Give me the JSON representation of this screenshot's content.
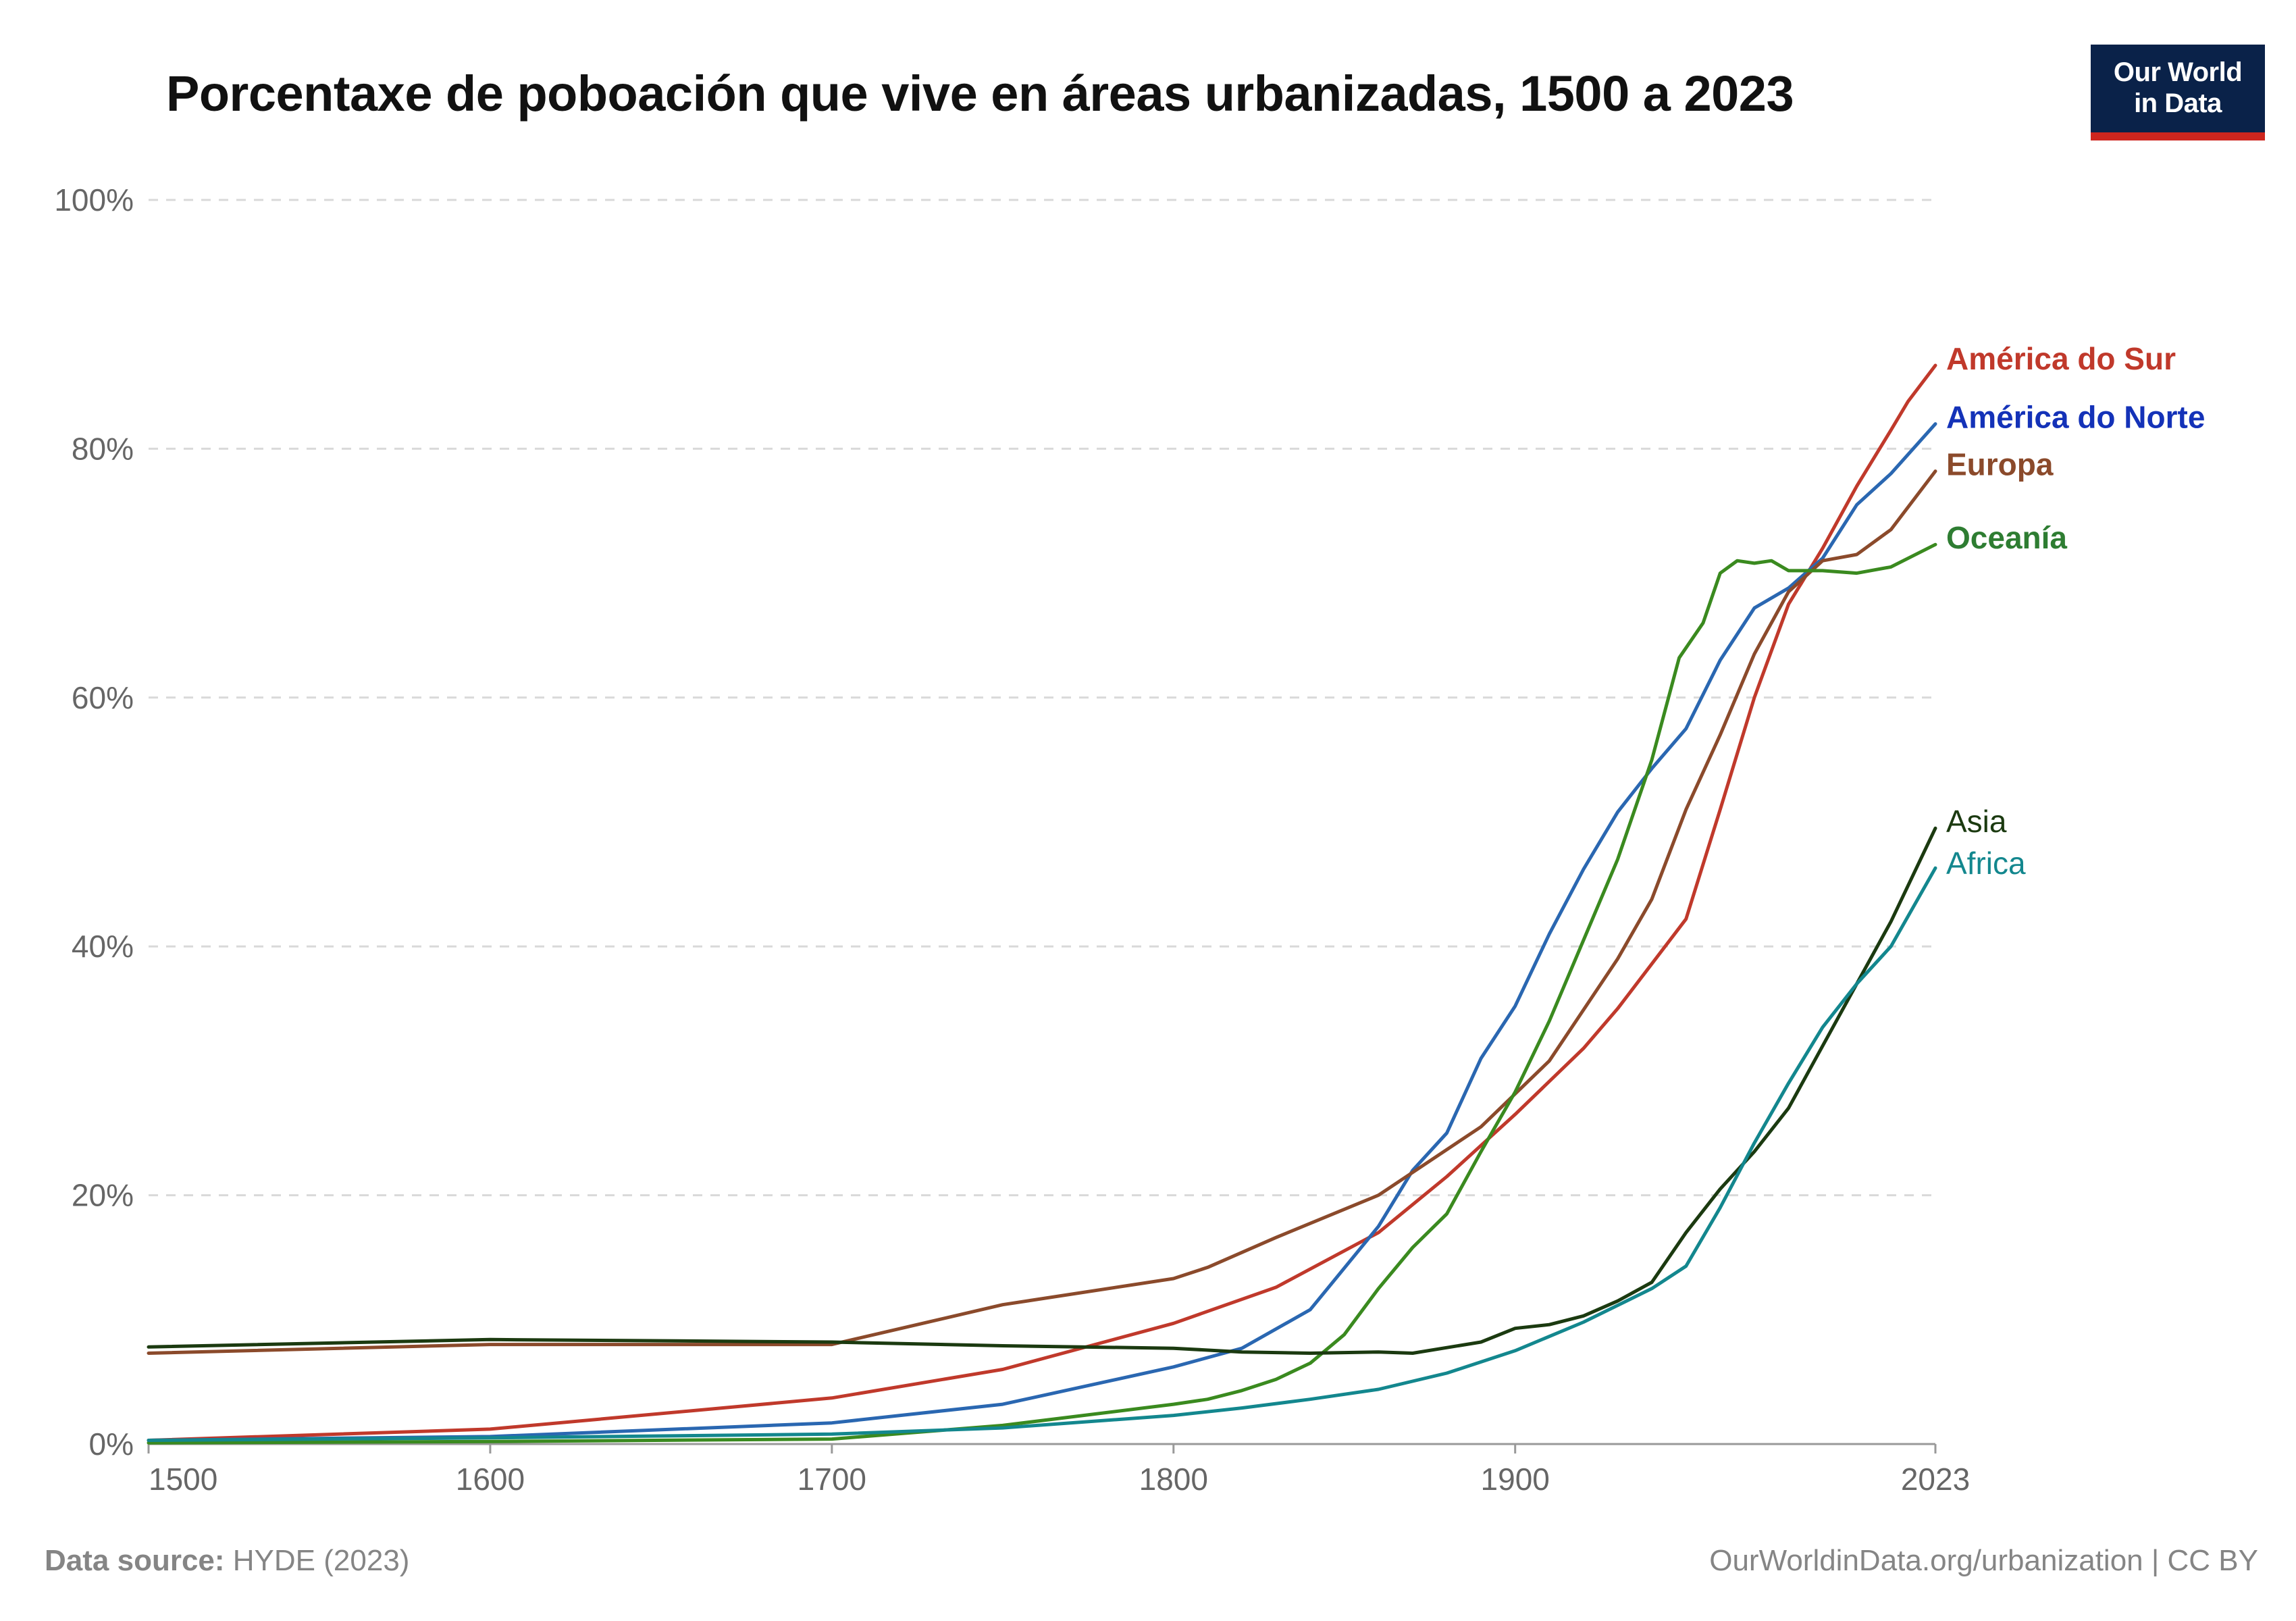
{
  "title": "Porcentaxe de poboación que vive en áreas urbanizadas, 1500 a 2023",
  "logo": {
    "line1": "Our World",
    "line2": "in Data",
    "bg": "#0a2249",
    "accent": "#ce261e"
  },
  "footer": {
    "source_label": "Data source:",
    "source_value": "HYDE (2023)",
    "url": "OurWorldinData.org/urbanization | CC BY"
  },
  "chart_data": {
    "type": "line",
    "title": "Porcentaxe de poboación que vive en áreas urbanizadas, 1500 a 2023",
    "xlabel": "",
    "ylabel": "",
    "xlim": [
      1500,
      2023
    ],
    "ylim": [
      0,
      100
    ],
    "x_ticks": [
      1500,
      1600,
      1700,
      1800,
      1900,
      2023
    ],
    "x_tick_labels": [
      "1500",
      "1600",
      "1700",
      "1800",
      "1900",
      "2023"
    ],
    "y_ticks": [
      0,
      20,
      40,
      60,
      80,
      100
    ],
    "y_tick_labels": [
      "0%",
      "20%",
      "40%",
      "60%",
      "80%",
      "100%"
    ],
    "grid": "horizontal dashed",
    "legend": "line-end labels on the right",
    "series": [
      {
        "name": "América do Sur",
        "color": "#c0392b",
        "label_color": "#c0392b",
        "points": [
          [
            1500,
            0.3
          ],
          [
            1600,
            1.2
          ],
          [
            1700,
            3.7
          ],
          [
            1750,
            6.0
          ],
          [
            1800,
            9.7
          ],
          [
            1830,
            12.6
          ],
          [
            1860,
            17.0
          ],
          [
            1880,
            21.5
          ],
          [
            1900,
            26.5
          ],
          [
            1920,
            31.8
          ],
          [
            1930,
            35.0
          ],
          [
            1950,
            42.2
          ],
          [
            1960,
            51.0
          ],
          [
            1970,
            60.0
          ],
          [
            1980,
            67.5
          ],
          [
            1990,
            72.0
          ],
          [
            2000,
            77.0
          ],
          [
            2010,
            81.5
          ],
          [
            2015,
            83.8
          ],
          [
            2023,
            86.7
          ]
        ]
      },
      {
        "name": "América do Norte",
        "color": "#2a67b1",
        "label_color": "#1432b8",
        "points": [
          [
            1500,
            0.3
          ],
          [
            1600,
            0.6
          ],
          [
            1700,
            1.7
          ],
          [
            1750,
            3.2
          ],
          [
            1800,
            6.2
          ],
          [
            1820,
            7.7
          ],
          [
            1840,
            10.8
          ],
          [
            1860,
            17.5
          ],
          [
            1870,
            22.0
          ],
          [
            1880,
            25.0
          ],
          [
            1890,
            31.0
          ],
          [
            1900,
            35.2
          ],
          [
            1910,
            41.0
          ],
          [
            1920,
            46.2
          ],
          [
            1930,
            50.8
          ],
          [
            1940,
            54.3
          ],
          [
            1950,
            57.5
          ],
          [
            1960,
            63.0
          ],
          [
            1970,
            67.2
          ],
          [
            1980,
            68.8
          ],
          [
            1990,
            71.2
          ],
          [
            2000,
            75.5
          ],
          [
            2010,
            78.0
          ],
          [
            2023,
            82.0
          ]
        ]
      },
      {
        "name": "Europa",
        "color": "#8b4a2b",
        "label_color": "#8b4a2b",
        "points": [
          [
            1500,
            7.3
          ],
          [
            1600,
            8.0
          ],
          [
            1700,
            8.0
          ],
          [
            1750,
            11.2
          ],
          [
            1800,
            13.3
          ],
          [
            1810,
            14.2
          ],
          [
            1830,
            16.6
          ],
          [
            1860,
            20.0
          ],
          [
            1890,
            25.5
          ],
          [
            1910,
            30.8
          ],
          [
            1930,
            39.0
          ],
          [
            1940,
            43.8
          ],
          [
            1950,
            51.0
          ],
          [
            1960,
            57.0
          ],
          [
            1970,
            63.5
          ],
          [
            1980,
            68.5
          ],
          [
            1990,
            71.0
          ],
          [
            2000,
            71.5
          ],
          [
            2010,
            73.5
          ],
          [
            2023,
            78.2
          ]
        ]
      },
      {
        "name": "Oceanía",
        "color": "#3a8a1f",
        "label_color": "#2e7d32",
        "points": [
          [
            1500,
            0.1
          ],
          [
            1600,
            0.2
          ],
          [
            1700,
            0.4
          ],
          [
            1750,
            1.5
          ],
          [
            1800,
            3.2
          ],
          [
            1810,
            3.6
          ],
          [
            1820,
            4.3
          ],
          [
            1830,
            5.2
          ],
          [
            1840,
            6.5
          ],
          [
            1850,
            8.8
          ],
          [
            1860,
            12.5
          ],
          [
            1870,
            15.8
          ],
          [
            1880,
            18.5
          ],
          [
            1890,
            23.5
          ],
          [
            1900,
            28.3
          ],
          [
            1910,
            34.0
          ],
          [
            1920,
            40.5
          ],
          [
            1930,
            47.0
          ],
          [
            1940,
            55.0
          ],
          [
            1948,
            63.2
          ],
          [
            1955,
            66.0
          ],
          [
            1960,
            70.0
          ],
          [
            1965,
            71.0
          ],
          [
            1970,
            70.8
          ],
          [
            1975,
            71.0
          ],
          [
            1980,
            70.2
          ],
          [
            1990,
            70.2
          ],
          [
            2000,
            70.0
          ],
          [
            2010,
            70.5
          ],
          [
            2023,
            72.3
          ]
        ]
      },
      {
        "name": "Asia",
        "color": "#1b3a10",
        "label_color": "#1b3a10",
        "points": [
          [
            1500,
            7.8
          ],
          [
            1600,
            8.4
          ],
          [
            1700,
            8.2
          ],
          [
            1750,
            7.9
          ],
          [
            1800,
            7.7
          ],
          [
            1820,
            7.4
          ],
          [
            1840,
            7.3
          ],
          [
            1860,
            7.4
          ],
          [
            1870,
            7.3
          ],
          [
            1890,
            8.2
          ],
          [
            1900,
            9.3
          ],
          [
            1910,
            9.6
          ],
          [
            1920,
            10.3
          ],
          [
            1930,
            11.5
          ],
          [
            1940,
            13.0
          ],
          [
            1950,
            17.0
          ],
          [
            1960,
            20.5
          ],
          [
            1970,
            23.5
          ],
          [
            1980,
            27.0
          ],
          [
            1990,
            32.0
          ],
          [
            2000,
            37.0
          ],
          [
            2010,
            42.0
          ],
          [
            2023,
            49.5
          ]
        ]
      },
      {
        "name": "Africa",
        "color": "#13878e",
        "label_color": "#13878e",
        "points": [
          [
            1500,
            0.3
          ],
          [
            1600,
            0.5
          ],
          [
            1700,
            0.8
          ],
          [
            1750,
            1.3
          ],
          [
            1800,
            2.3
          ],
          [
            1820,
            2.9
          ],
          [
            1840,
            3.6
          ],
          [
            1860,
            4.4
          ],
          [
            1880,
            5.7
          ],
          [
            1900,
            7.5
          ],
          [
            1920,
            9.8
          ],
          [
            1940,
            12.5
          ],
          [
            1950,
            14.3
          ],
          [
            1960,
            19.0
          ],
          [
            1970,
            24.2
          ],
          [
            1980,
            29.0
          ],
          [
            1990,
            33.5
          ],
          [
            2000,
            37.0
          ],
          [
            2010,
            40.0
          ],
          [
            2023,
            46.3
          ]
        ]
      }
    ]
  }
}
